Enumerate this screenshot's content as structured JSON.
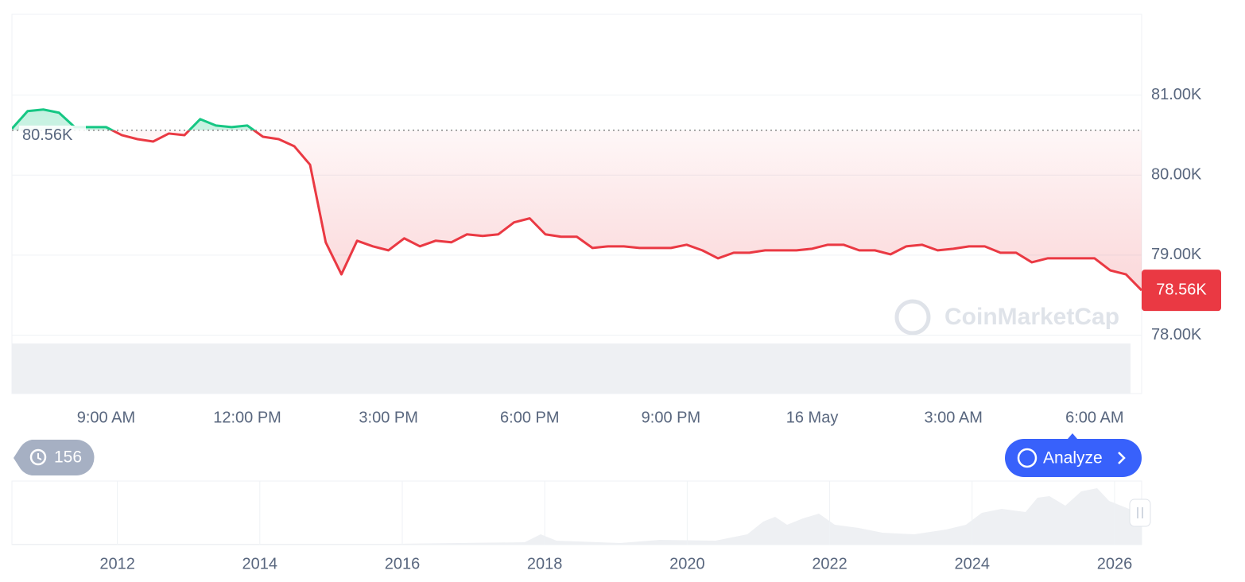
{
  "chart_data": {
    "type": "line",
    "categories": [
      null,
      null,
      null,
      null,
      null,
      null,
      "9:00 AM",
      null,
      null,
      null,
      null,
      null,
      null,
      null,
      null,
      "12:00 PM",
      null,
      null,
      null,
      null,
      null,
      null,
      null,
      null,
      "3:00 PM",
      null,
      null,
      null,
      null,
      null,
      null,
      null,
      null,
      "6:00 PM",
      null,
      null,
      null,
      null,
      null,
      null,
      null,
      null,
      "9:00 PM",
      null,
      null,
      null,
      null,
      null,
      null,
      null,
      null,
      "16 May",
      null,
      null,
      null,
      null,
      null,
      null,
      null,
      null,
      "3:00 AM",
      null,
      null,
      null,
      null,
      null,
      null,
      null,
      null,
      "6:00 AM",
      null,
      null,
      null
    ],
    "values": [
      80.58,
      80.8,
      80.82,
      80.78,
      80.6,
      80.6,
      80.6,
      80.5,
      80.45,
      80.42,
      80.52,
      80.5,
      80.7,
      80.62,
      80.6,
      80.62,
      80.48,
      80.45,
      80.36,
      80.13,
      79.16,
      78.76,
      79.18,
      79.11,
      79.06,
      79.21,
      79.11,
      79.18,
      79.16,
      79.26,
      79.24,
      79.26,
      79.41,
      79.46,
      79.26,
      79.23,
      79.23,
      79.09,
      79.11,
      79.11,
      79.09,
      79.09,
      79.09,
      79.13,
      79.06,
      78.96,
      79.03,
      79.03,
      79.06,
      79.06,
      79.06,
      79.08,
      79.13,
      79.13,
      79.06,
      79.06,
      79.01,
      79.11,
      79.13,
      79.06,
      79.08,
      79.11,
      79.11,
      79.03,
      79.03,
      78.91,
      78.96,
      78.96,
      78.96,
      78.96,
      78.81,
      78.76,
      78.56
    ],
    "colors": {
      "up": "#16c784",
      "down": "#ea3943"
    },
    "ylim": [
      77.27,
      82.01
    ],
    "yticks": [
      {
        "value": 78,
        "label": "78.00K"
      },
      {
        "value": 79,
        "label": "79.00K"
      },
      {
        "value": 80,
        "label": "80.00K"
      },
      {
        "value": 81,
        "label": "81.00K"
      }
    ],
    "grid": true,
    "baseline": {
      "value": 80.56,
      "label": "80.56K"
    },
    "current": {
      "value": 78.56,
      "label": "78.56K"
    },
    "watermark": "CoinMarketCap",
    "navigator": {
      "xlim": [
        2010.52,
        2026.38
      ],
      "xticks": [
        2012,
        2014,
        2016,
        2018,
        2020,
        2022,
        2024,
        2026
      ]
    }
  },
  "ui": {
    "history_count": "156",
    "analyze_button": "Analyze"
  }
}
